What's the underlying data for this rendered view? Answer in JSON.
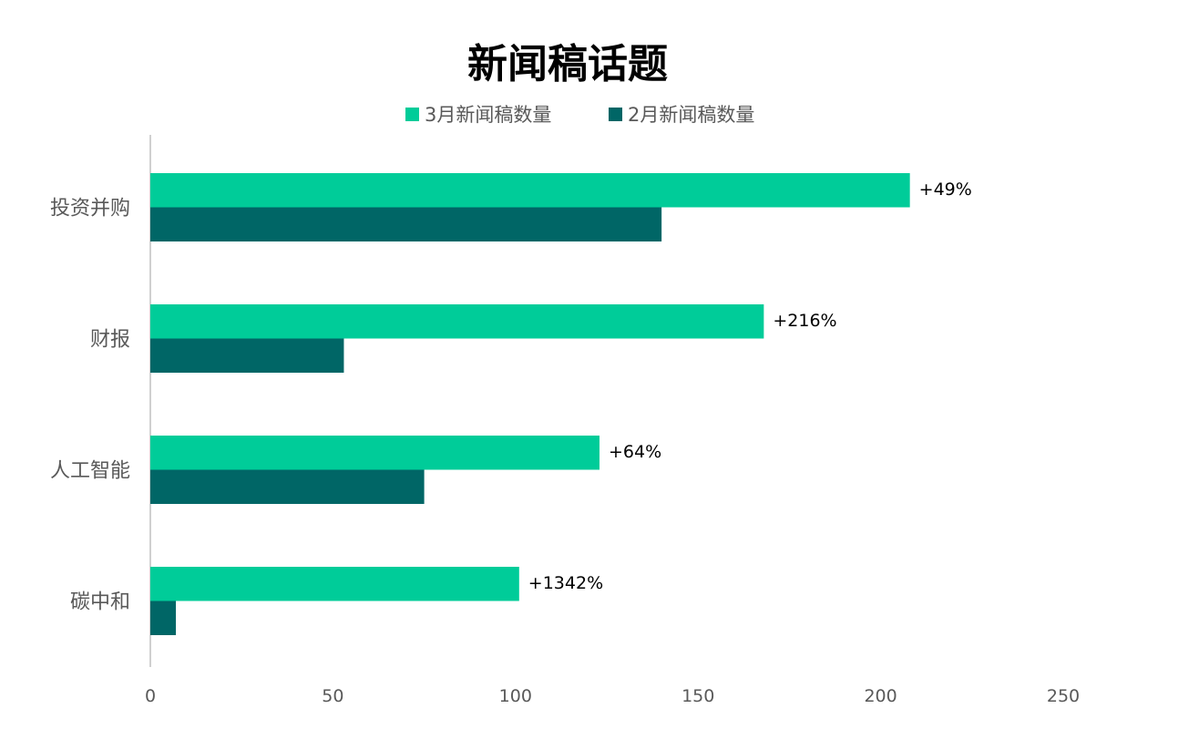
{
  "chart_data": {
    "type": "bar",
    "orientation": "horizontal",
    "title": "新闻稿话题",
    "categories": [
      "投资并购",
      "财报",
      "人工智能",
      "碳中和"
    ],
    "series": [
      {
        "name": "3月新闻稿数量",
        "color": "#00CC99",
        "values": [
          208,
          168,
          123,
          101
        ]
      },
      {
        "name": "2月新闻稿数量",
        "color": "#006666",
        "values": [
          140,
          53,
          75,
          7
        ]
      }
    ],
    "data_labels": [
      "+49%",
      "+216%",
      "+64%",
      "+1342%"
    ],
    "xlim": [
      0,
      250
    ],
    "x_ticks": [
      "0",
      "50",
      "100",
      "150",
      "200",
      "250"
    ],
    "xlabel": "",
    "ylabel": "",
    "grid": false,
    "legend_position": "top"
  }
}
